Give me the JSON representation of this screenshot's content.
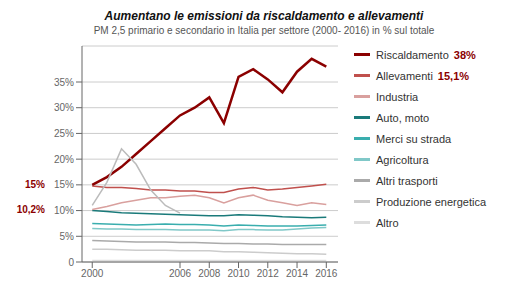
{
  "chart_data": {
    "type": "line",
    "title": "Aumentano le emissioni da riscaldamento e allevamenti",
    "subtitle": "PM 2,5 primario e secondario in Italia per settore (2000- 2016) in % sul totale",
    "x": [
      2000,
      2001,
      2002,
      2003,
      2004,
      2005,
      2006,
      2007,
      2008,
      2009,
      2010,
      2011,
      2012,
      2013,
      2014,
      2015,
      2016
    ],
    "xlim": [
      1999.3,
      2016.8
    ],
    "xticks": [
      2000,
      2006,
      2008,
      2010,
      2012,
      2014,
      2016
    ],
    "ylim": [
      0,
      42
    ],
    "yticks": [
      0,
      {
        "value": 5,
        "label": "5%"
      },
      {
        "value": 10,
        "label": "10%"
      },
      {
        "value": 15,
        "label": "15%"
      },
      {
        "value": 20,
        "label": "20%"
      },
      {
        "value": 25,
        "label": "25%"
      },
      {
        "value": 30,
        "label": "30%"
      },
      {
        "value": 35,
        "label": "35%"
      }
    ],
    "grid": true,
    "legend": "right",
    "series": [
      {
        "name": "Riscaldamento",
        "color": "#8B0000",
        "values": [
          15.0,
          16.5,
          18.5,
          21.0,
          23.5,
          26.0,
          28.5,
          30.0,
          32.0,
          27.0,
          36.0,
          37.5,
          35.5,
          33.0,
          37.0,
          39.5,
          38.0
        ],
        "start_label": "15%",
        "end_label": "38%",
        "label_color": "#8B0000"
      },
      {
        "name": "Allevamenti",
        "color": "#c0504d",
        "values": [
          14.8,
          14.5,
          14.5,
          14.3,
          14.0,
          14.0,
          13.8,
          13.8,
          13.5,
          13.5,
          14.2,
          14.5,
          14.0,
          14.2,
          14.5,
          14.8,
          15.1
        ],
        "end_label": "15,1%",
        "label_color": "#8B0000"
      },
      {
        "name": "Industria",
        "color": "#d9a09e",
        "values": [
          10.2,
          10.8,
          11.5,
          12.0,
          12.5,
          12.5,
          12.8,
          13.0,
          12.5,
          11.5,
          12.5,
          13.0,
          12.0,
          11.5,
          11.0,
          11.5,
          11.2
        ],
        "start_label": "10,2%",
        "label_color": "#8B0000"
      },
      {
        "name": "Auto, moto",
        "color": "#1a7a7a",
        "values": [
          10.0,
          9.8,
          9.6,
          9.5,
          9.4,
          9.3,
          9.2,
          9.1,
          9.0,
          9.0,
          9.2,
          9.1,
          9.0,
          8.8,
          8.7,
          8.6,
          8.7
        ]
      },
      {
        "name": "Merci su strada",
        "color": "#3aaeae",
        "values": [
          7.5,
          7.4,
          7.3,
          7.2,
          7.3,
          7.4,
          7.3,
          7.3,
          7.2,
          7.0,
          7.2,
          7.1,
          7.0,
          7.0,
          7.0,
          7.1,
          7.2
        ]
      },
      {
        "name": "Agricoltura",
        "color": "#80c8c8",
        "values": [
          6.5,
          6.4,
          6.4,
          6.3,
          6.3,
          6.3,
          6.2,
          6.2,
          6.2,
          6.1,
          6.3,
          6.3,
          6.2,
          6.2,
          6.4,
          6.6,
          6.7
        ]
      },
      {
        "name": "Altri trasporti",
        "color": "#aaaaaa",
        "values": [
          4.2,
          4.1,
          4.0,
          3.9,
          3.9,
          3.9,
          3.8,
          3.8,
          3.7,
          3.6,
          3.6,
          3.5,
          3.5,
          3.4,
          3.4,
          3.4,
          3.4
        ]
      },
      {
        "name": "Produzione energetica",
        "color": "#cccccc",
        "values": [
          2.5,
          2.5,
          2.4,
          2.3,
          2.3,
          2.3,
          2.2,
          2.2,
          2.2,
          2.0,
          2.0,
          1.9,
          1.8,
          1.7,
          1.6,
          1.6,
          1.5
        ]
      },
      {
        "name": "Altro",
        "color": "#dddddd",
        "values": [
          0.3,
          0.3,
          0.3,
          0.3,
          0.3,
          0.3,
          0.3,
          0.3,
          0.3,
          0.3,
          0.3,
          0.3,
          0.3,
          0.3,
          0.3,
          0.3,
          0.3
        ]
      },
      {
        "color": "#bbbbbb",
        "x": [
          2000,
          2001,
          2002,
          2003,
          2004,
          2005,
          2006
        ],
        "values": [
          11.0,
          15.5,
          22.0,
          19.0,
          14.0,
          11.0,
          9.5
        ]
      }
    ]
  }
}
